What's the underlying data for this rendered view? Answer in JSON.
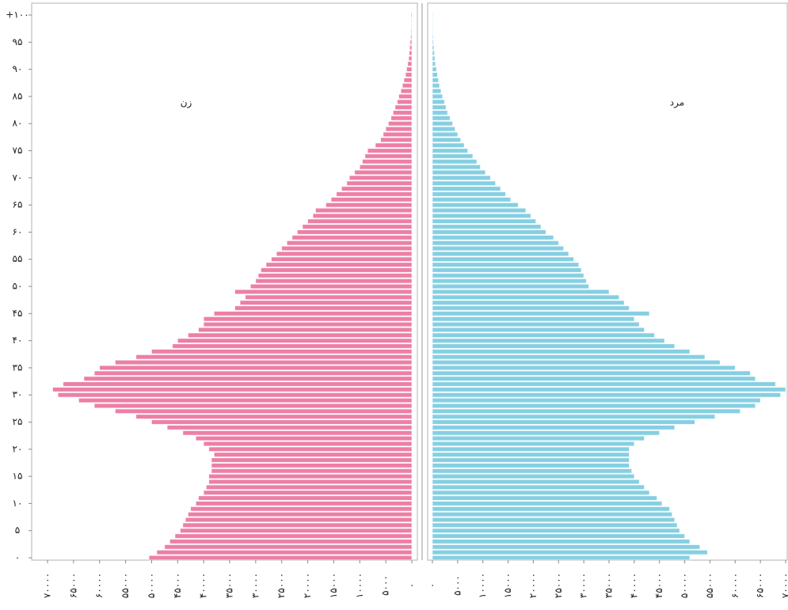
{
  "chart_data": {
    "type": "pyramid",
    "y": [
      0,
      1,
      2,
      3,
      4,
      5,
      6,
      7,
      8,
      9,
      10,
      11,
      12,
      13,
      14,
      15,
      16,
      17,
      18,
      19,
      20,
      21,
      22,
      23,
      24,
      25,
      26,
      27,
      28,
      29,
      30,
      31,
      32,
      33,
      34,
      35,
      36,
      37,
      38,
      39,
      40,
      41,
      42,
      43,
      44,
      45,
      46,
      47,
      48,
      49,
      50,
      51,
      52,
      53,
      54,
      55,
      56,
      57,
      58,
      59,
      60,
      61,
      62,
      63,
      64,
      65,
      66,
      67,
      68,
      69,
      70,
      71,
      72,
      73,
      74,
      75,
      76,
      77,
      78,
      79,
      80,
      81,
      82,
      83,
      84,
      85,
      86,
      87,
      88,
      89,
      90,
      91,
      92,
      93,
      94,
      95,
      96,
      97,
      98,
      99,
      100
    ],
    "series": [
      {
        "name": "زن",
        "color": "#ec7fa6",
        "side": "left",
        "values": [
          50500,
          49000,
          47500,
          46500,
          45500,
          44500,
          44000,
          43500,
          43000,
          42500,
          41500,
          41000,
          40000,
          39500,
          39000,
          39000,
          38500,
          38500,
          38500,
          38000,
          39000,
          40000,
          41500,
          44000,
          47000,
          50000,
          53000,
          57000,
          61000,
          64000,
          68000,
          69000,
          67000,
          63000,
          61000,
          60000,
          57000,
          53000,
          50000,
          46000,
          45000,
          43000,
          41000,
          40000,
          40000,
          38000,
          34000,
          33000,
          32000,
          34000,
          31000,
          30000,
          29500,
          29000,
          28000,
          27000,
          26000,
          25000,
          24000,
          23000,
          22000,
          21000,
          20000,
          19000,
          18500,
          16500,
          15500,
          14500,
          13500,
          12500,
          12000,
          11000,
          10000,
          9500,
          9000,
          8500,
          7000,
          6000,
          5500,
          5000,
          4500,
          4000,
          3600,
          3200,
          2800,
          2500,
          2100,
          1800,
          1500,
          1200,
          1000,
          800,
          600,
          500,
          400,
          300,
          200,
          150,
          100,
          80,
          150
        ]
      },
      {
        "name": "مرد",
        "color": "#86cfe2",
        "side": "right",
        "values": [
          51000,
          54500,
          53000,
          51000,
          50000,
          49000,
          48500,
          48000,
          47500,
          47000,
          45500,
          44500,
          43000,
          42000,
          41000,
          40000,
          39500,
          39000,
          39000,
          39000,
          39000,
          40000,
          42000,
          45000,
          48000,
          52000,
          56000,
          61000,
          64000,
          65000,
          69000,
          70000,
          68000,
          64000,
          63000,
          60000,
          57000,
          54000,
          51000,
          48000,
          46000,
          44000,
          42000,
          41000,
          40000,
          43000,
          39000,
          38000,
          37000,
          35000,
          31000,
          30500,
          30000,
          29500,
          29000,
          28000,
          27000,
          26000,
          25000,
          24000,
          22500,
          21500,
          20500,
          19500,
          18500,
          17000,
          15500,
          14500,
          13500,
          12500,
          11500,
          10500,
          9500,
          8800,
          8000,
          7000,
          6300,
          5600,
          5000,
          4500,
          4000,
          3500,
          3000,
          2700,
          2400,
          2000,
          1700,
          1400,
          1200,
          1000,
          800,
          600,
          500,
          400,
          300,
          200,
          150,
          100,
          80,
          60,
          100
        ]
      }
    ],
    "xlim": [
      0,
      70000
    ],
    "xticks": [
      {
        "value": 0,
        "label": "۰"
      },
      {
        "value": 5000,
        "label": "۵۰۰۰"
      },
      {
        "value": 10000,
        "label": "۱۰۰۰۰"
      },
      {
        "value": 15000,
        "label": "۱۵۰۰۰"
      },
      {
        "value": 20000,
        "label": "۲۰۰۰۰"
      },
      {
        "value": 25000,
        "label": "۲۵۰۰۰"
      },
      {
        "value": 30000,
        "label": "۳۰۰۰۰"
      },
      {
        "value": 35000,
        "label": "۳۵۰۰۰"
      },
      {
        "value": 40000,
        "label": "۴۰۰۰۰"
      },
      {
        "value": 45000,
        "label": "۴۵۰۰۰"
      },
      {
        "value": 50000,
        "label": "۵۰۰۰۰"
      },
      {
        "value": 55000,
        "label": "۵۵۰۰۰"
      },
      {
        "value": 60000,
        "label": "۶۰۰۰۰"
      },
      {
        "value": 65000,
        "label": "۶۵۰۰۰"
      },
      {
        "value": 70000,
        "label": "۷۰۰۰۰"
      }
    ],
    "ylim": [
      0,
      100
    ],
    "yticks": [
      {
        "value": 0,
        "label": "۰"
      },
      {
        "value": 5,
        "label": "۵"
      },
      {
        "value": 10,
        "label": "۱۰"
      },
      {
        "value": 15,
        "label": "۱۵"
      },
      {
        "value": 20,
        "label": "۲۰"
      },
      {
        "value": 25,
        "label": "۲۵"
      },
      {
        "value": 30,
        "label": "۳۰"
      },
      {
        "value": 35,
        "label": "۳۵"
      },
      {
        "value": 40,
        "label": "۴۰"
      },
      {
        "value": 45,
        "label": "۴۵"
      },
      {
        "value": 50,
        "label": "۵۰"
      },
      {
        "value": 55,
        "label": "۵۵"
      },
      {
        "value": 60,
        "label": "۶۰"
      },
      {
        "value": 65,
        "label": "۶۵"
      },
      {
        "value": 70,
        "label": "۷۰"
      },
      {
        "value": 75,
        "label": "۷۵"
      },
      {
        "value": 80,
        "label": "۸۰"
      },
      {
        "value": 85,
        "label": "۸۵"
      },
      {
        "value": 90,
        "label": "۹۰"
      },
      {
        "value": 95,
        "label": "۹۵"
      },
      {
        "value": 100,
        "label": "+۱۰۰"
      }
    ]
  }
}
